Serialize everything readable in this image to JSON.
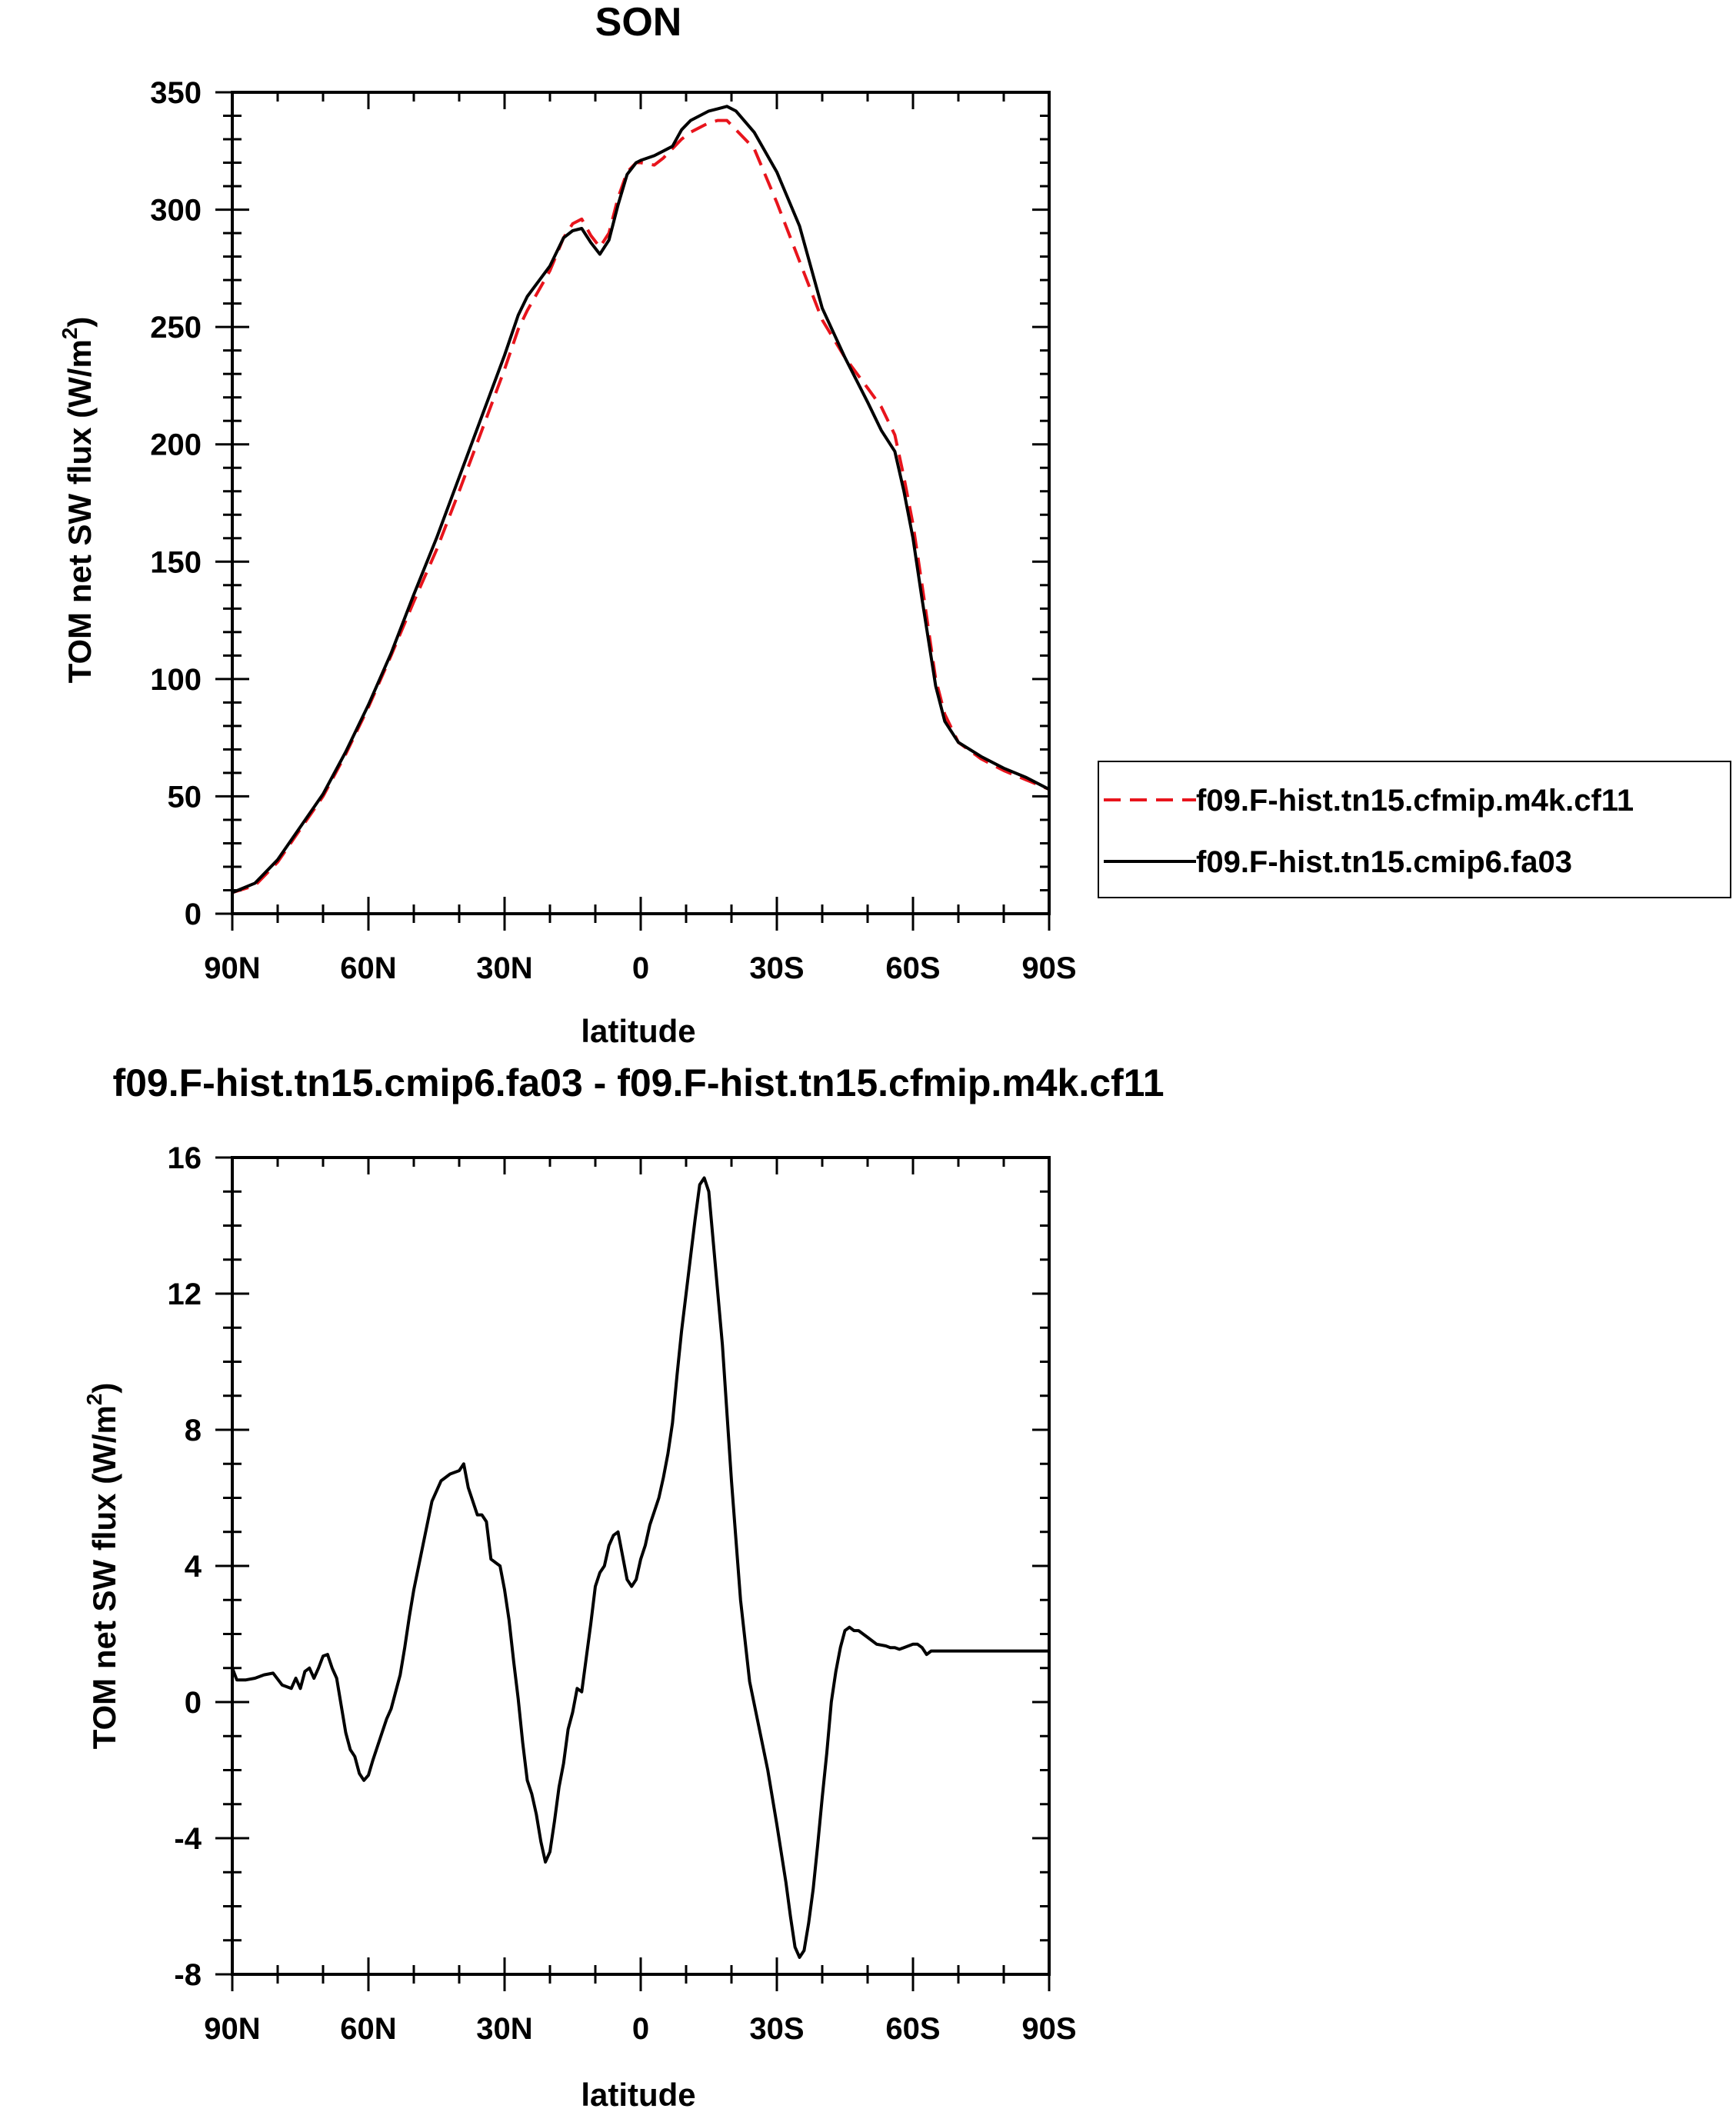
{
  "chart_data": [
    {
      "type": "line",
      "title": "SON",
      "xlabel": "latitude",
      "ylabel": "TOM net SW flux (W/m",
      "ylabel_sup": "2",
      "ylabel_close": ")",
      "xlim": [
        90,
        -90
      ],
      "ylim": [
        0,
        350
      ],
      "xticks": [
        {
          "value": 90,
          "label": "90N"
        },
        {
          "value": 60,
          "label": "60N"
        },
        {
          "value": 30,
          "label": "30N"
        },
        {
          "value": 0,
          "label": "0"
        },
        {
          "value": -30,
          "label": "30S"
        },
        {
          "value": -60,
          "label": "60S"
        },
        {
          "value": -90,
          "label": "90S"
        }
      ],
      "yticks": [
        0,
        50,
        100,
        150,
        200,
        250,
        300,
        350
      ],
      "legend_position": "right",
      "series": [
        {
          "name": "f09.F-hist.tn15.cfmip.m4k.cf11",
          "color": "#e8141c",
          "style": "dashed",
          "x": [
            90,
            85,
            80,
            75,
            70,
            65,
            60,
            55,
            50,
            45,
            40,
            35,
            30,
            27,
            25,
            20,
            17,
            15,
            13,
            11,
            9,
            7,
            5,
            3,
            1,
            0,
            -3,
            -5,
            -7,
            -9,
            -11,
            -15,
            -17,
            -19,
            -21,
            -25,
            -30,
            -35,
            -40,
            -45,
            -50,
            -53,
            -56,
            -58,
            -60,
            -62,
            -65,
            -67,
            -70,
            -75,
            -80,
            -85,
            -90
          ],
          "y": [
            9,
            12,
            22,
            36,
            50,
            68,
            88,
            110,
            133,
            155,
            180,
            206,
            232,
            249,
            257,
            274,
            288,
            294,
            296,
            289,
            284,
            290,
            305,
            316,
            320,
            320,
            319,
            322,
            326,
            330,
            333,
            337,
            338,
            338,
            334,
            326,
            303,
            278,
            253,
            237,
            224,
            216,
            204,
            186,
            166,
            140,
            100,
            85,
            73,
            66,
            61,
            57,
            53
          ]
        },
        {
          "name": "f09.F-hist.tn15.cmip6.fa03",
          "color": "#000000",
          "style": "solid",
          "x": [
            90,
            85,
            80,
            75,
            70,
            65,
            60,
            55,
            50,
            45,
            40,
            35,
            30,
            27,
            25,
            20,
            17,
            15,
            13,
            11,
            9,
            7,
            5,
            3,
            1,
            0,
            -3,
            -5,
            -7,
            -9,
            -11,
            -15,
            -17,
            -19,
            -21,
            -25,
            -30,
            -35,
            -40,
            -45,
            -50,
            -53,
            -56,
            -58,
            -60,
            -62,
            -65,
            -67,
            -70,
            -75,
            -80,
            -85,
            -90
          ],
          "y": [
            9,
            13,
            23,
            37,
            51,
            69,
            89,
            111,
            136,
            160,
            186,
            212,
            238,
            255,
            263,
            276,
            288,
            291,
            292,
            286,
            281,
            287,
            302,
            315,
            320,
            321,
            323,
            325,
            327,
            334,
            338,
            342,
            343,
            344,
            342,
            333,
            316,
            293,
            258,
            237,
            218,
            206,
            197,
            180,
            160,
            134,
            97,
            82,
            73,
            67,
            62,
            58,
            53
          ]
        }
      ]
    },
    {
      "type": "line",
      "title": "f09.F-hist.tn15.cmip6.fa03 - f09.F-hist.tn15.cfmip.m4k.cf11",
      "xlabel": "latitude",
      "ylabel": "TOM net SW flux (W/m",
      "ylabel_sup": "2",
      "ylabel_close": ")",
      "xlim": [
        90,
        -90
      ],
      "ylim": [
        -8,
        16
      ],
      "xticks": [
        {
          "value": 90,
          "label": "90N"
        },
        {
          "value": 60,
          "label": "60N"
        },
        {
          "value": 30,
          "label": "30N"
        },
        {
          "value": 0,
          "label": "0"
        },
        {
          "value": -30,
          "label": "30S"
        },
        {
          "value": -60,
          "label": "60S"
        },
        {
          "value": -90,
          "label": "90S"
        }
      ],
      "yticks": [
        -8,
        -4,
        0,
        4,
        8,
        12,
        16
      ],
      "series": [
        {
          "color": "#000000",
          "style": "solid",
          "x": [
            90,
            89,
            87,
            85,
            83,
            81,
            79,
            77,
            76,
            75,
            74,
            73,
            72,
            71,
            70,
            69,
            68,
            67,
            66,
            65,
            64,
            63,
            62,
            61,
            60,
            59,
            58,
            57,
            56,
            55,
            54,
            53,
            52,
            51,
            50,
            48,
            46,
            44,
            42,
            40,
            39,
            38,
            37,
            36,
            35,
            34,
            33,
            32,
            31,
            30,
            29,
            28,
            27,
            26,
            25,
            24,
            23,
            22,
            21,
            20,
            19,
            18,
            17,
            16,
            15,
            14,
            13,
            12,
            11,
            10,
            9,
            8,
            7,
            6,
            5,
            4,
            3,
            2,
            1,
            0,
            -1,
            -2,
            -3,
            -4,
            -5,
            -6,
            -7,
            -8,
            -9,
            -10,
            -11,
            -12,
            -13,
            -14,
            -15,
            -16,
            -18,
            -20,
            -22,
            -24,
            -26,
            -28,
            -30,
            -32,
            -33,
            -34,
            -35,
            -36,
            -37,
            -38,
            -39,
            -40,
            -41,
            -42,
            -43,
            -44,
            -45,
            -46,
            -47,
            -48,
            -50,
            -52,
            -54,
            -55,
            -56,
            -57,
            -58,
            -59,
            -60,
            -61,
            -62,
            -63,
            -64,
            -65,
            -66,
            -67,
            -68,
            -69,
            -70,
            -71,
            -72,
            -73,
            -74,
            -76,
            -78,
            -80,
            -82,
            -84,
            -86,
            -88,
            -90
          ],
          "y": [
            1.0,
            0.65,
            0.65,
            0.7,
            0.8,
            0.85,
            0.5,
            0.4,
            0.7,
            0.4,
            0.9,
            1.0,
            0.7,
            1.0,
            1.35,
            1.4,
            1.0,
            0.7,
            -0.1,
            -0.9,
            -1.4,
            -1.6,
            -2.1,
            -2.3,
            -2.15,
            -1.7,
            -1.3,
            -0.9,
            -0.5,
            -0.2,
            0.3,
            0.8,
            1.6,
            2.5,
            3.3,
            4.6,
            5.9,
            6.5,
            6.7,
            6.8,
            7.0,
            6.3,
            5.9,
            5.5,
            5.5,
            5.3,
            4.2,
            4.1,
            4.0,
            3.3,
            2.4,
            1.2,
            0.1,
            -1.2,
            -2.3,
            -2.7,
            -3.3,
            -4.1,
            -4.7,
            -4.4,
            -3.5,
            -2.5,
            -1.8,
            -0.8,
            -0.3,
            0.4,
            0.3,
            1.3,
            2.3,
            3.4,
            3.8,
            4.0,
            4.6,
            4.9,
            5.0,
            4.3,
            3.6,
            3.4,
            3.6,
            4.2,
            4.6,
            5.2,
            5.6,
            6.0,
            6.6,
            7.3,
            8.2,
            9.6,
            10.9,
            12.0,
            13.1,
            14.2,
            15.2,
            15.4,
            15.0,
            13.5,
            10.5,
            6.5,
            3.0,
            0.6,
            -0.7,
            -2.0,
            -3.6,
            -5.3,
            -6.3,
            -7.2,
            -7.5,
            -7.3,
            -6.5,
            -5.5,
            -4.2,
            -2.8,
            -1.5,
            0.0,
            0.9,
            1.6,
            2.1,
            2.2,
            2.1,
            2.1,
            1.9,
            1.7,
            1.65,
            1.6,
            1.6,
            1.55,
            1.6,
            1.65,
            1.7,
            1.7,
            1.6,
            1.4,
            1.5,
            1.5,
            1.5,
            1.5,
            1.5,
            1.5,
            1.5,
            1.5,
            1.5,
            1.5,
            1.5,
            1.5,
            1.5,
            1.5,
            1.5,
            1.5,
            1.5,
            1.5,
            1.5
          ]
        }
      ]
    }
  ]
}
